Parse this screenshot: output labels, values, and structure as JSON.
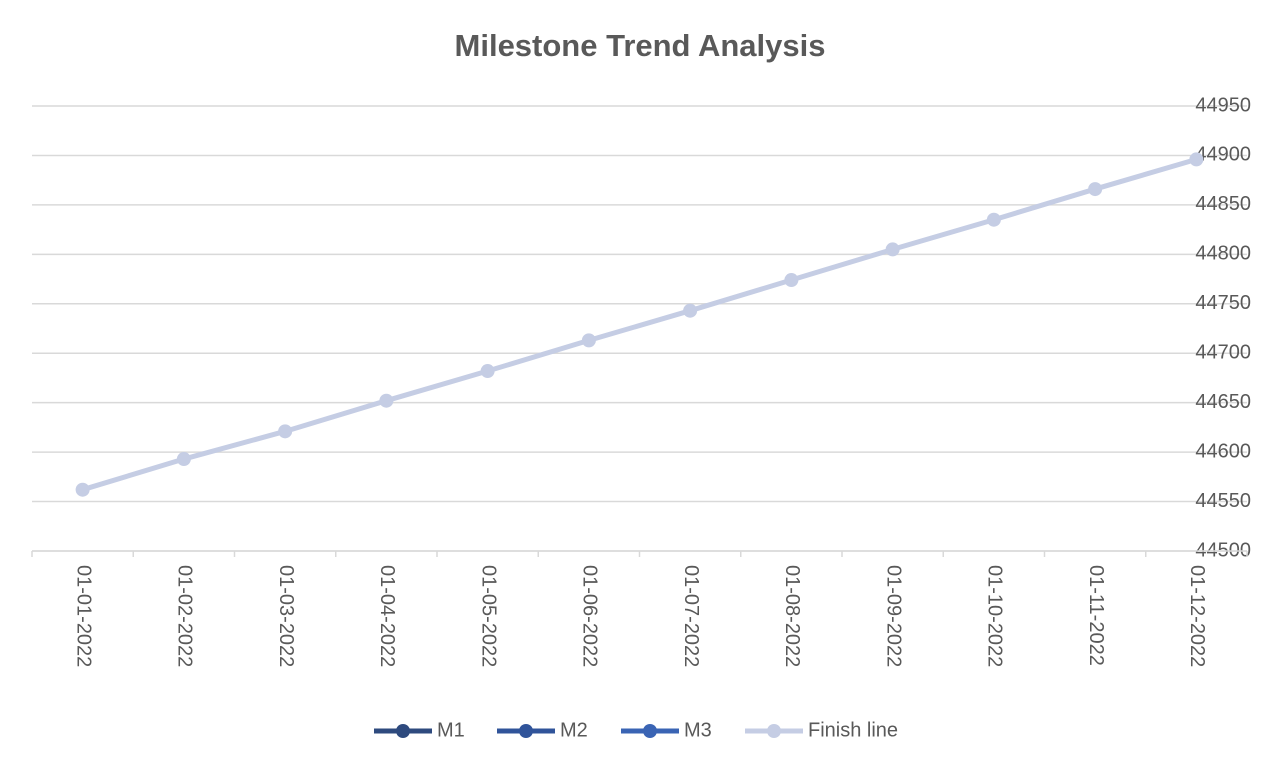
{
  "chart_data": {
    "type": "line",
    "title": "Milestone Trend Analysis",
    "categories": [
      "01-01-2022",
      "01-02-2022",
      "01-03-2022",
      "01-04-2022",
      "01-05-2022",
      "01-06-2022",
      "01-07-2022",
      "01-08-2022",
      "01-09-2022",
      "01-10-2022",
      "01-11-2022",
      "01-12-2022"
    ],
    "series": [
      {
        "name": "M1",
        "color": "#2e4a7e",
        "values": [
          null,
          null,
          null,
          null,
          null,
          null,
          null,
          null,
          null,
          null,
          null,
          null
        ]
      },
      {
        "name": "M2",
        "color": "#30549a",
        "values": [
          null,
          null,
          null,
          null,
          null,
          null,
          null,
          null,
          null,
          null,
          null,
          null
        ]
      },
      {
        "name": "M3",
        "color": "#3a64b4",
        "values": [
          null,
          null,
          null,
          null,
          null,
          null,
          null,
          null,
          null,
          null,
          null,
          null
        ]
      },
      {
        "name": "Finish line",
        "color": "#c5cde4",
        "values": [
          44562,
          44593,
          44621,
          44652,
          44682,
          44713,
          44743,
          44774,
          44805,
          44835,
          44866,
          44896
        ]
      }
    ],
    "ylim": [
      44500,
      44950
    ],
    "yticks": [
      44500,
      44550,
      44600,
      44650,
      44700,
      44750,
      44800,
      44850,
      44900,
      44950
    ],
    "grid": true,
    "legend": "bottom"
  }
}
